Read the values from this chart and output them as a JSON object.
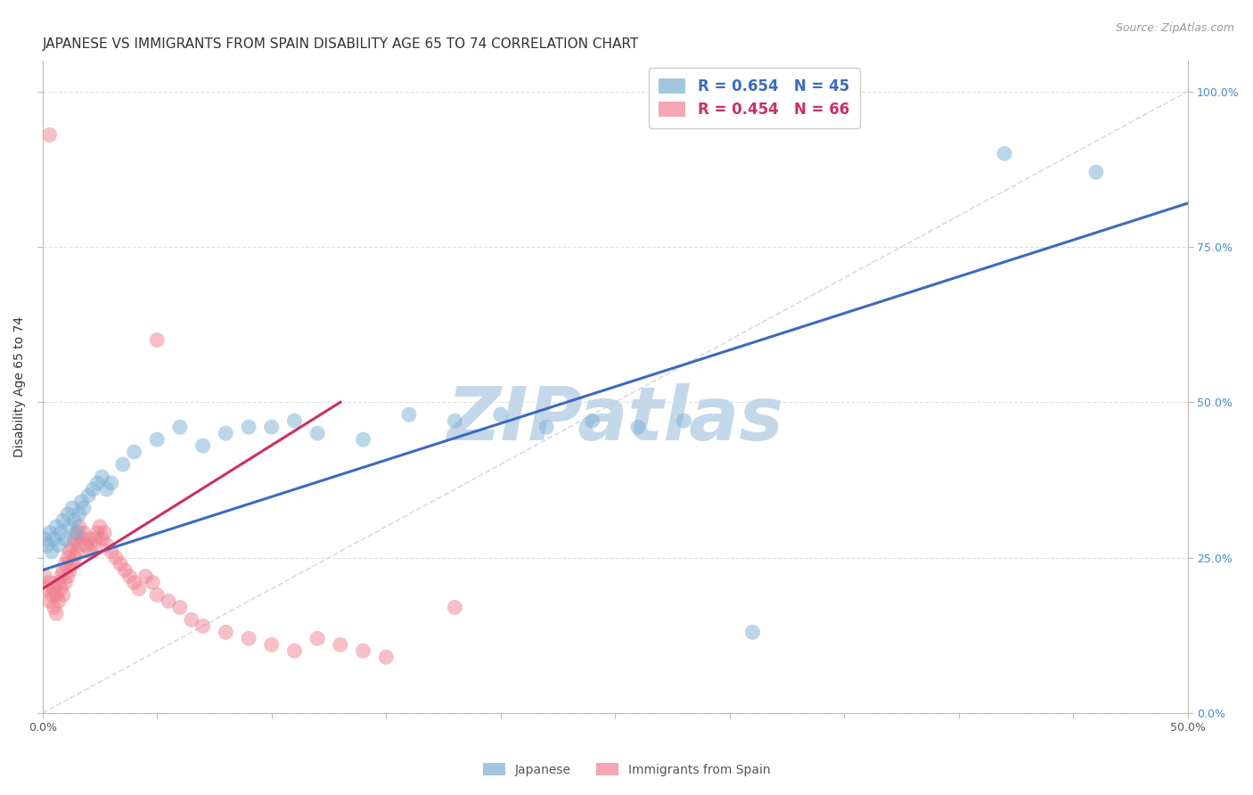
{
  "title": "JAPANESE VS IMMIGRANTS FROM SPAIN DISABILITY AGE 65 TO 74 CORRELATION CHART",
  "source_text": "Source: ZipAtlas.com",
  "ylabel": "Disability Age 65 to 74",
  "watermark": "ZIPatlas",
  "xlim": [
    0.0,
    0.5
  ],
  "ylim": [
    0.0,
    1.05
  ],
  "x_ticks": [
    0.0,
    0.05,
    0.1,
    0.15,
    0.2,
    0.25,
    0.3,
    0.35,
    0.4,
    0.45,
    0.5
  ],
  "y_ticks_right": [
    0.0,
    0.25,
    0.5,
    0.75,
    1.0
  ],
  "y_tick_labels_right": [
    "0.0%",
    "25.0%",
    "50.0%",
    "75.0%",
    "100.0%"
  ],
  "legend_r1": "R = 0.654   N = 45",
  "legend_r2": "R = 0.454   N = 66",
  "japanese_x": [
    0.001,
    0.002,
    0.003,
    0.004,
    0.005,
    0.006,
    0.007,
    0.008,
    0.009,
    0.01,
    0.011,
    0.012,
    0.013,
    0.014,
    0.015,
    0.016,
    0.017,
    0.018,
    0.02,
    0.022,
    0.024,
    0.026,
    0.028,
    0.03,
    0.035,
    0.04,
    0.05,
    0.06,
    0.07,
    0.08,
    0.09,
    0.1,
    0.11,
    0.12,
    0.14,
    0.16,
    0.18,
    0.2,
    0.22,
    0.24,
    0.26,
    0.28,
    0.31,
    0.42,
    0.46
  ],
  "japanese_y": [
    0.28,
    0.27,
    0.29,
    0.26,
    0.28,
    0.3,
    0.27,
    0.29,
    0.31,
    0.28,
    0.32,
    0.3,
    0.33,
    0.31,
    0.29,
    0.32,
    0.34,
    0.33,
    0.35,
    0.36,
    0.37,
    0.38,
    0.36,
    0.37,
    0.4,
    0.42,
    0.44,
    0.46,
    0.43,
    0.45,
    0.46,
    0.46,
    0.47,
    0.45,
    0.44,
    0.48,
    0.47,
    0.48,
    0.46,
    0.47,
    0.46,
    0.47,
    0.13,
    0.9,
    0.87
  ],
  "spain_x": [
    0.001,
    0.002,
    0.003,
    0.003,
    0.004,
    0.005,
    0.005,
    0.006,
    0.006,
    0.007,
    0.007,
    0.008,
    0.008,
    0.009,
    0.009,
    0.01,
    0.01,
    0.011,
    0.011,
    0.012,
    0.012,
    0.013,
    0.013,
    0.014,
    0.014,
    0.015,
    0.015,
    0.016,
    0.016,
    0.017,
    0.018,
    0.019,
    0.02,
    0.021,
    0.022,
    0.023,
    0.024,
    0.025,
    0.026,
    0.027,
    0.028,
    0.03,
    0.032,
    0.034,
    0.036,
    0.038,
    0.04,
    0.042,
    0.045,
    0.048,
    0.05,
    0.055,
    0.06,
    0.065,
    0.07,
    0.08,
    0.09,
    0.1,
    0.11,
    0.12,
    0.13,
    0.14,
    0.15,
    0.18,
    0.05,
    0.003
  ],
  "spain_y": [
    0.22,
    0.2,
    0.18,
    0.21,
    0.19,
    0.17,
    0.2,
    0.16,
    0.19,
    0.18,
    0.21,
    0.2,
    0.22,
    0.19,
    0.23,
    0.21,
    0.24,
    0.22,
    0.25,
    0.23,
    0.26,
    0.24,
    0.27,
    0.25,
    0.28,
    0.26,
    0.29,
    0.27,
    0.3,
    0.28,
    0.29,
    0.27,
    0.28,
    0.26,
    0.27,
    0.28,
    0.29,
    0.3,
    0.28,
    0.29,
    0.27,
    0.26,
    0.25,
    0.24,
    0.23,
    0.22,
    0.21,
    0.2,
    0.22,
    0.21,
    0.19,
    0.18,
    0.17,
    0.15,
    0.14,
    0.13,
    0.12,
    0.11,
    0.1,
    0.12,
    0.11,
    0.1,
    0.09,
    0.17,
    0.6,
    0.93
  ],
  "blue_scatter": "#7BAFD4",
  "pink_scatter": "#F08090",
  "blue_line": "#3B6BBF",
  "pink_line": "#CC3060",
  "grid_color": "#E0E0E0",
  "bg_color": "#FFFFFF",
  "watermark_color": "#C5D8EA",
  "title_fontsize": 11,
  "ylabel_fontsize": 10,
  "tick_fontsize": 9,
  "legend_fontsize": 12,
  "source_fontsize": 9,
  "right_tick_color": "#4488CC"
}
